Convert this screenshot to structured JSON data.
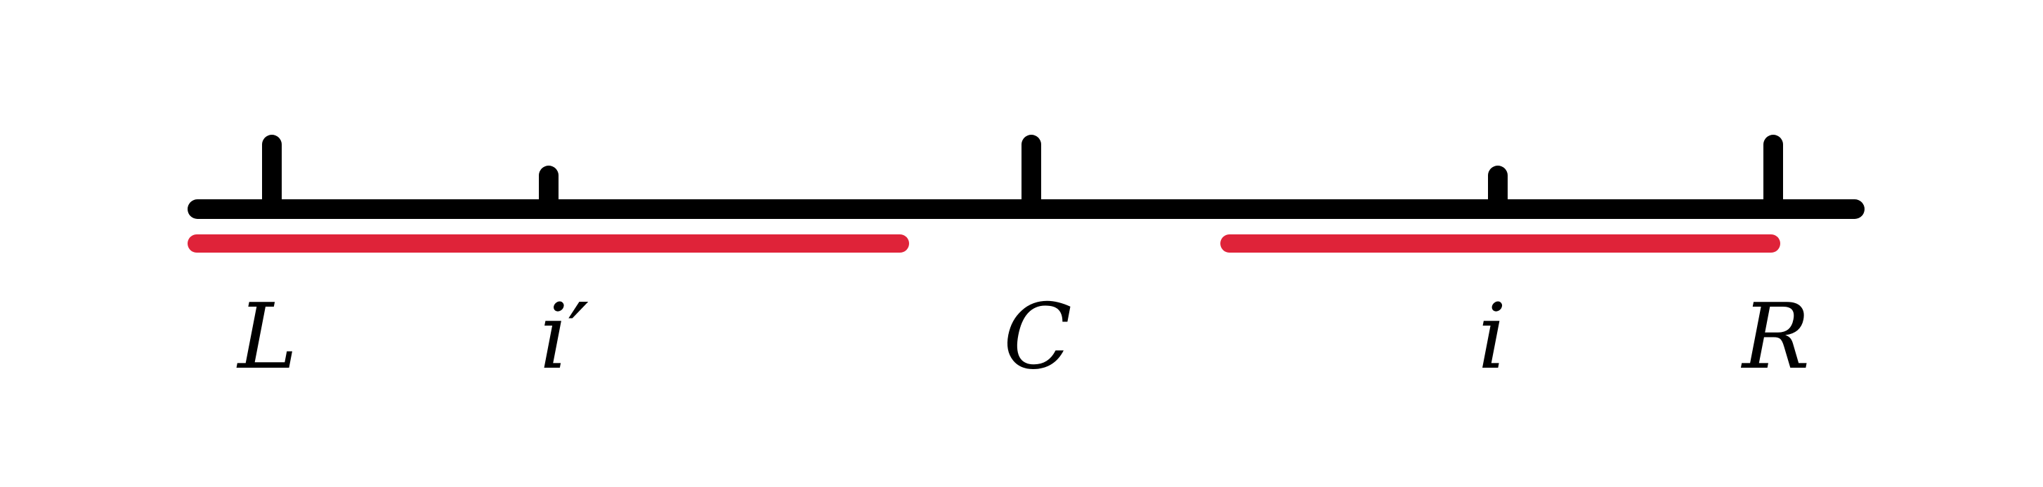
{
  "colors": {
    "axis": "#000000",
    "highlight": "#df2339",
    "background": "#ffffff"
  },
  "labels": {
    "L": "L",
    "i_prime": "i′",
    "C": "C",
    "i": "i",
    "R": "R"
  }
}
